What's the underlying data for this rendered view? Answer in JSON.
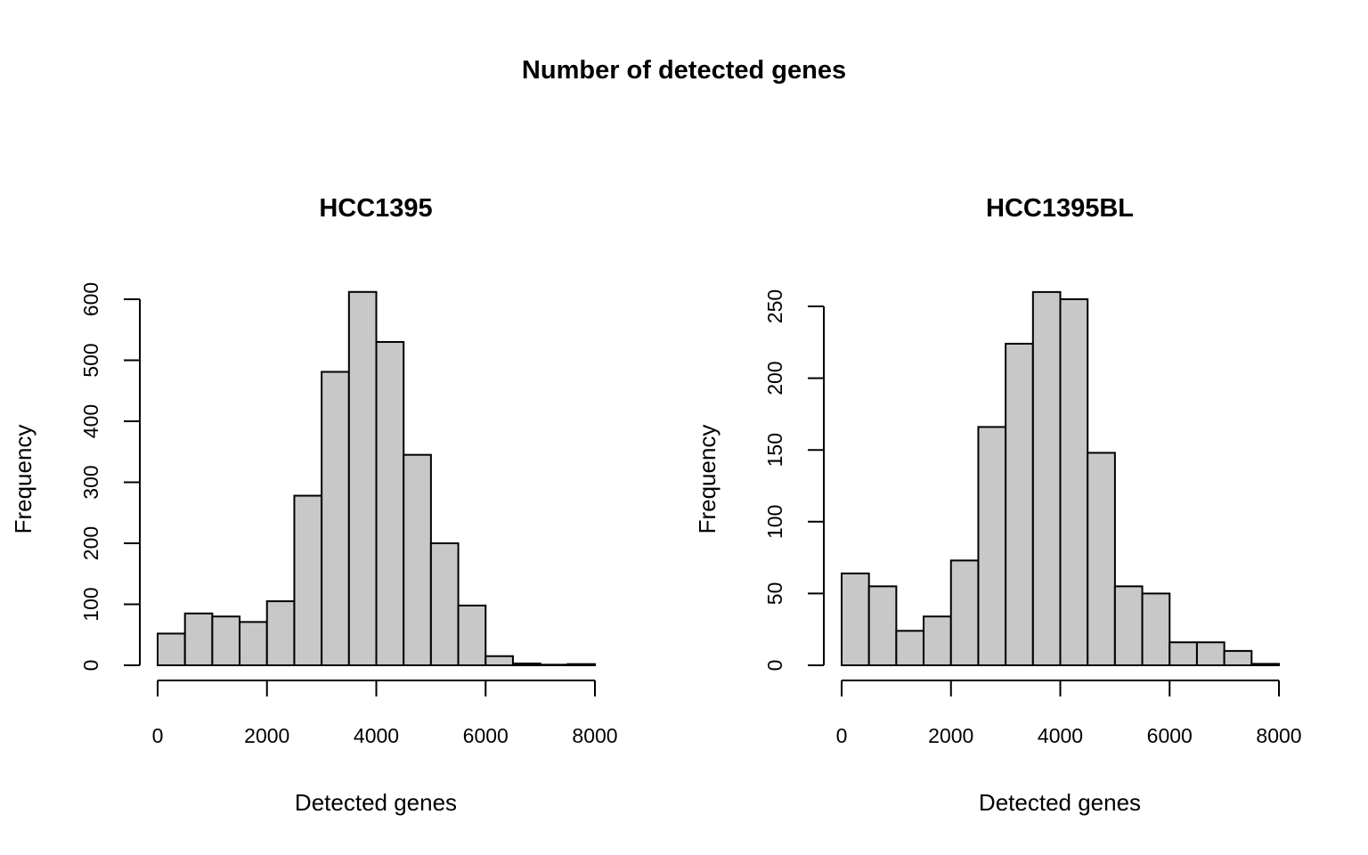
{
  "figure": {
    "title": "Number of detected genes"
  },
  "chart_data": [
    {
      "type": "bar",
      "title": "HCC1395",
      "xlabel": "Detected genes",
      "ylabel": "Frequency",
      "xlim": [
        0,
        8000
      ],
      "ylim": [
        0,
        600
      ],
      "x_ticks": [
        0,
        2000,
        4000,
        6000,
        8000
      ],
      "y_ticks": [
        0,
        100,
        200,
        300,
        400,
        500,
        600
      ],
      "bin_edges": [
        0,
        500,
        1000,
        1500,
        2000,
        2500,
        3000,
        3500,
        4000,
        4500,
        5000,
        5500,
        6000,
        6500,
        7000,
        7500,
        8000
      ],
      "values": [
        52,
        85,
        80,
        71,
        105,
        278,
        481,
        612,
        530,
        345,
        200,
        98,
        15,
        3,
        1,
        2
      ],
      "grid": false
    },
    {
      "type": "bar",
      "title": "HCC1395BL",
      "xlabel": "Detected genes",
      "ylabel": "Frequency",
      "xlim": [
        0,
        8000
      ],
      "ylim": [
        0,
        250
      ],
      "x_ticks": [
        0,
        2000,
        4000,
        6000,
        8000
      ],
      "y_ticks": [
        0,
        50,
        100,
        150,
        200,
        250
      ],
      "bin_edges": [
        0,
        500,
        1000,
        1500,
        2000,
        2500,
        3000,
        3500,
        4000,
        4500,
        5000,
        5500,
        6000,
        6500,
        7000,
        7500,
        8000
      ],
      "values": [
        64,
        55,
        24,
        34,
        73,
        166,
        224,
        260,
        255,
        148,
        55,
        50,
        16,
        16,
        10,
        1
      ],
      "grid": false
    }
  ]
}
